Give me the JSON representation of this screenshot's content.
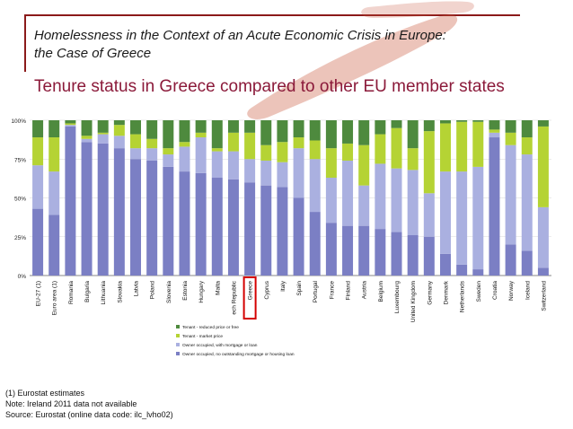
{
  "header": {
    "title_line1": "Homelessness in the Context of an Acute Economic Crisis in Europe:",
    "title_line2": "the Case of Greece"
  },
  "subtitle": "Tenure status in Greece compared to other EU member states",
  "footer": {
    "note1": "(1) Eurostat estimates",
    "note2": "Note: Ireland 2011 data not available",
    "source": "Source: Eurostat (online data code: ilc_lvho02)"
  },
  "colors": {
    "owner_no_mortgage": "#7b7fc4",
    "owner_mortgage": "#aab0e0",
    "tenant_market": "#b5d334",
    "tenant_reduced": "#4e8a3e",
    "highlight": "#d40000",
    "header_rule": "#8b1a1a",
    "subtitle": "#8b1a3a"
  },
  "chart_data": {
    "type": "bar",
    "stacked": true,
    "ylim": [
      0,
      100
    ],
    "yticks": [
      "0%",
      "25%",
      "50%",
      "75%",
      "100%"
    ],
    "highlight_category": "Greece",
    "categories": [
      "EU-27 (1)",
      "Euro area (1)",
      "Romania",
      "Bulgaria",
      "Lithuania",
      "Slovakia",
      "Latvia",
      "Poland",
      "Slovenia",
      "Estonia",
      "Hungary",
      "Malta",
      "Czech Republic",
      "Greece",
      "Cyprus",
      "Italy",
      "Spain",
      "Portugal",
      "France",
      "Finland",
      "Austria",
      "Belgium",
      "Luxembourg",
      "United Kingdom",
      "Germany",
      "Denmark",
      "Netherlands",
      "Sweden",
      "Croatia",
      "Norway",
      "Iceland",
      "Switzerland"
    ],
    "tick_labels": [
      "EU-27 (1)",
      "Euro area (1)",
      "Romania",
      "Bulgaria",
      "Lithuania",
      "Slovakia",
      "Latvia",
      "Poland",
      "Slovenia",
      "Estonia",
      "Hungary",
      "Malta",
      "ech Republic",
      "Greece",
      "Cyprus",
      "Italy",
      "Spain",
      "Portugal",
      "France",
      "Finland",
      "Austria",
      "Belgium",
      "Luxembourg",
      "United Kingdom",
      "Germany",
      "Denmark",
      "Netherlands",
      "Sweden",
      "Croatia",
      "Norway",
      "Iceland",
      "Switzerland"
    ],
    "series": [
      {
        "name": "Owner occupied, no outstanding mortgage or housing loan",
        "values": [
          43,
          39,
          96,
          86,
          85,
          82,
          75,
          74,
          70,
          67,
          66,
          63,
          62,
          60,
          58,
          57,
          50,
          41,
          34,
          32,
          32,
          30,
          28,
          26,
          25,
          14,
          7,
          4,
          89,
          20,
          16,
          5
        ]
      },
      {
        "name": "Owner occupied, with mortgage or loan",
        "values": [
          28,
          28,
          1,
          2,
          6,
          8,
          7,
          8,
          8,
          16,
          23,
          17,
          18,
          15,
          16,
          16,
          32,
          34,
          29,
          42,
          26,
          42,
          41,
          42,
          28,
          53,
          60,
          66,
          3,
          64,
          62,
          39
        ]
      },
      {
        "name": "Tenant - market price",
        "values": [
          18,
          22,
          1,
          2,
          1,
          7,
          9,
          6,
          4,
          3,
          3,
          2,
          12,
          17,
          10,
          13,
          7,
          12,
          19,
          11,
          26,
          19,
          26,
          14,
          40,
          31,
          32,
          29,
          2,
          8,
          11,
          52
        ]
      },
      {
        "name": "Tenant - reduced price or free",
        "values": [
          11,
          11,
          2,
          10,
          8,
          3,
          9,
          12,
          18,
          14,
          8,
          18,
          8,
          8,
          16,
          14,
          11,
          13,
          18,
          15,
          16,
          9,
          5,
          18,
          7,
          2,
          1,
          1,
          6,
          8,
          11,
          4
        ]
      }
    ],
    "legend_order": [
      3,
      2,
      1,
      0
    ],
    "legend_position": "bottom"
  }
}
